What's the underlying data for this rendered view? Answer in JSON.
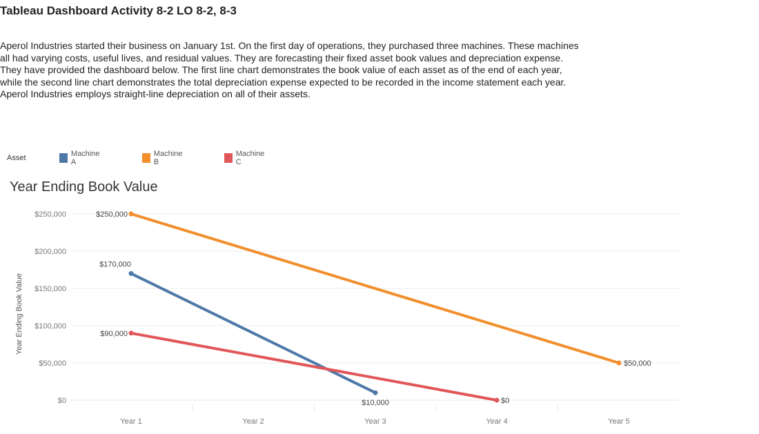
{
  "page": {
    "title": "Tableau Dashboard Activity 8-2 LO 8-2, 8-3",
    "intro_lines": [
      "Aperol Industries started their business on January 1st. On the first day of operations, they purchased three machines. These machines",
      "all had varying costs, useful lives, and residual values. They are forecasting their fixed asset book values and depreciation expense.",
      "They have provided the dashboard below. The first line chart demonstrates the book value of each asset as of the end of each year,",
      "while the second line chart demonstrates the total depreciation expense expected to be recorded in the income statement each year.",
      "Aperol Industries employs straight-line depreciation on all of their assets."
    ]
  },
  "legend": {
    "title": "Asset",
    "items": [
      {
        "label": "Machine A",
        "color": "#4e79a7"
      },
      {
        "label": "Machine B",
        "color": "#f28e2b"
      },
      {
        "label": "Machine C",
        "color": "#e15759"
      }
    ]
  },
  "chart_data": {
    "type": "line",
    "title": "Year Ending Book Value",
    "ylabel": "Year Ending Book Value",
    "xlabel": "",
    "categories": [
      "Year 1",
      "Year 2",
      "Year 3",
      "Year 4",
      "Year 5"
    ],
    "ylim": [
      0,
      250000
    ],
    "yticks": [
      0,
      50000,
      100000,
      150000,
      200000,
      250000
    ],
    "ytick_labels": [
      "$0",
      "$50,000",
      "$100,000",
      "$150,000",
      "$200,000",
      "$250,000"
    ],
    "grid": true,
    "legend_position": "top",
    "series": [
      {
        "name": "Machine A",
        "color": "#4e79a7",
        "points": [
          [
            0,
            170000
          ],
          [
            2,
            10000
          ]
        ],
        "labels": [
          "$170,000",
          "$10,000"
        ]
      },
      {
        "name": "Machine B",
        "color": "#f28e2b",
        "points": [
          [
            0,
            250000
          ],
          [
            4,
            50000
          ]
        ],
        "labels": [
          "$250,000",
          "$50,000"
        ]
      },
      {
        "name": "Machine C",
        "color": "#e15759",
        "points": [
          [
            0,
            90000
          ],
          [
            3,
            0
          ]
        ],
        "labels": [
          "$90,000",
          "$0"
        ]
      }
    ]
  }
}
